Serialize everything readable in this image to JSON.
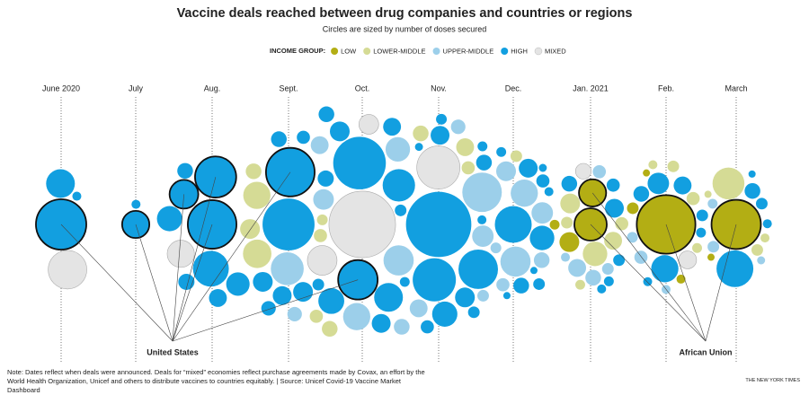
{
  "chart_data": {
    "type": "bubble-swarm",
    "title": "Vaccine deals reached between drug companies and countries or regions",
    "subtitle": "Circles are sized by number of doses secured",
    "legend_title": "INCOME GROUP:",
    "categories": [
      "June 2020",
      "July",
      "Aug.",
      "Sept.",
      "Oct.",
      "Nov.",
      "Dec.",
      "Jan. 2021",
      "Feb.",
      "March"
    ],
    "series": [
      {
        "name": "LOW",
        "color": "#b3ae14",
        "x": [
          "Jan. 2021",
          "Jan. 2021",
          "Feb.",
          "Feb.",
          "Feb.",
          "March"
        ],
        "values": [
          100,
          20,
          30,
          16,
          9,
          9
        ]
      },
      {
        "name": "LOWER-MIDDLE",
        "color": "#d5db95",
        "x": [
          "Aug.",
          "Sept.",
          "Sept.",
          "Sept.",
          "Sept.",
          "Sept.",
          "Oct.",
          "Oct.",
          "Nov.",
          "Nov.",
          "Nov.",
          "Dec.",
          "Jan. 2021",
          "Jan. 2021",
          "Jan. 2021",
          "Jan. 2021",
          "Jan. 2021",
          "Jan. 2021",
          "Feb.",
          "Feb.",
          "Feb.",
          "Feb.",
          "March",
          "March",
          "March",
          "March"
        ],
        "values": [
          100,
          200,
          220,
          60,
          40,
          25,
          60,
          40,
          80,
          60,
          40,
          30,
          160,
          100,
          80,
          40,
          30,
          20,
          40,
          30,
          20,
          16,
          280,
          30,
          16,
          9
        ]
      },
      {
        "name": "UPPER-MIDDLE",
        "color": "#9ccfea",
        "x": [
          "Sept.",
          "Sept.",
          "Oct.",
          "Oct.",
          "Oct.",
          "Oct.",
          "Oct.",
          "Nov.",
          "Nov.",
          "Nov.",
          "Nov.",
          "Nov.",
          "Nov.",
          "Dec.",
          "Dec.",
          "Dec.",
          "Dec.",
          "Dec.",
          "Dec.",
          "Dec.",
          "Jan. 2021",
          "Jan. 2021",
          "Jan. 2021",
          "Jan. 2021",
          "Jan. 2021",
          "Feb.",
          "Feb.",
          "Feb.",
          "March",
          "March",
          "March"
        ],
        "values": [
          300,
          50,
          200,
          160,
          110,
          80,
          60,
          440,
          250,
          120,
          80,
          50,
          30,
          250,
          200,
          120,
          100,
          60,
          40,
          25,
          80,
          60,
          40,
          30,
          16,
          40,
          25,
          16,
          30,
          20,
          12
        ]
      },
      {
        "name": "HIGH",
        "color": "#129fe0",
        "x": [
          "June 2020",
          "June 2020",
          "July",
          "Aug.",
          "Aug.",
          "Aug.",
          "Aug.",
          "Aug.",
          "Aug.",
          "Sept.",
          "Sept.",
          "Sept.",
          "Sept.",
          "Sept.",
          "Sept.",
          "Sept.",
          "Sept.",
          "Oct.",
          "Oct.",
          "Oct.",
          "Oct.",
          "Oct.",
          "Oct.",
          "Oct.",
          "Oct.",
          "Oct.",
          "Oct.",
          "Oct.",
          "Nov.",
          "Nov.",
          "Nov.",
          "Nov.",
          "Nov.",
          "Nov.",
          "Nov.",
          "Nov.",
          "Nov.",
          "Nov.",
          "Nov.",
          "Nov.",
          "Nov.",
          "Dec.",
          "Dec.",
          "Dec.",
          "Dec.",
          "Dec.",
          "Dec.",
          "Dec.",
          "Dec.",
          "Dec.",
          "Dec.",
          "Dec.",
          "Jan. 2021",
          "Jan. 2021",
          "Jan. 2021",
          "Jan. 2021",
          "Jan. 2021",
          "Jan. 2021",
          "Feb.",
          "Feb.",
          "Feb.",
          "Feb.",
          "Feb.",
          "Feb.",
          "Feb.",
          "March",
          "March",
          "March",
          "March",
          "March"
        ],
        "values": [
          225,
          16,
          16,
          145,
          360,
          170,
          80,
          64,
          60,
          780,
          100,
          64,
          100,
          90,
          60,
          50,
          30,
          800,
          290,
          225,
          180,
          100,
          90,
          80,
          60,
          40,
          30,
          20,
          1250,
          530,
          440,
          170,
          100,
          90,
          60,
          40,
          30,
          25,
          20,
          16,
          12,
          380,
          160,
          90,
          60,
          40,
          30,
          20,
          16,
          12,
          9,
          9,
          90,
          60,
          40,
          30,
          20,
          16,
          200,
          120,
          80,
          60,
          30,
          20,
          16,
          380,
          60,
          30,
          16,
          9
        ]
      },
      {
        "name": "MIXED",
        "color": "#e4e4e4",
        "x": [
          "June 2020",
          "Aug.",
          "Oct.",
          "Oct.",
          "Oct.",
          "Nov.",
          "Jan. 2021",
          "Feb."
        ],
        "values": [
          420,
          200,
          1300,
          240,
          100,
          530,
          60,
          80
        ]
      }
    ],
    "annotations": [
      {
        "text": "United States",
        "group": "HIGH",
        "x": [
          "June 2020",
          "July",
          "Aug.",
          "Aug.",
          "Aug.",
          "Sept.",
          "Oct."
        ],
        "values": [
          730,
          200,
          680,
          480,
          225,
          680,
          440
        ]
      },
      {
        "text": "African Union",
        "group": "LOW",
        "x": [
          "Jan. 2021",
          "Jan. 2021",
          "Feb.",
          "March"
        ],
        "values": [
          290,
          200,
          1000,
          700
        ]
      }
    ],
    "note": "Note: Dates reflect when deals were announced. Deals for “mixed” economies reflect purchase agreements made by Covax, an effort by the World Health Organization, Unicef and others to distribute vaccines to countries equitably. | Source: Unicef Covid-19 Vaccine Market Dashboard",
    "credit": "THE NEW YORK TIMES"
  }
}
